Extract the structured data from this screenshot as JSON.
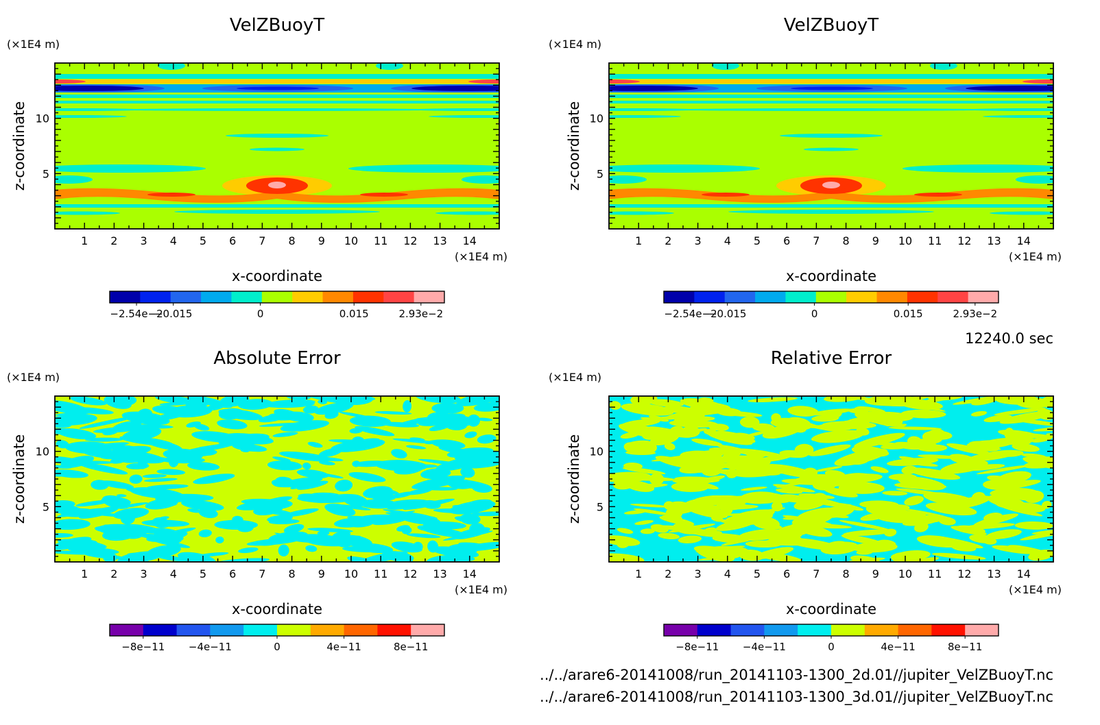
{
  "chart_data": [
    {
      "type": "heatmap",
      "title": "VelZBuoyT",
      "xlabel": "x-coordinate",
      "ylabel": "z-coordinate",
      "x_unit": "(×1E4 m)",
      "y_unit": "(×1E4 m)",
      "xlim": [
        0,
        15
      ],
      "ylim": [
        0,
        15
      ],
      "x_ticks": [
        "1",
        "2",
        "3",
        "4",
        "5",
        "6",
        "7",
        "8",
        "9",
        "10",
        "11",
        "12",
        "13",
        "14"
      ],
      "y_ticks": [
        "5",
        "10"
      ],
      "colorbar": {
        "range": [
          -0.0254,
          0.0293
        ],
        "labels": [
          "−2.54e−2",
          "−0.015",
          "0",
          "0.015",
          "2.93e−2"
        ],
        "colors": [
          "#0000aa",
          "#0022ee",
          "#2266ee",
          "#00aaee",
          "#00eecc",
          "#aaff00",
          "#ffcc00",
          "#ff8800",
          "#ff3300",
          "#ff4444",
          "#ffaaaa"
        ]
      }
    },
    {
      "type": "heatmap",
      "title": "VelZBuoyT",
      "xlabel": "x-coordinate",
      "ylabel": "z-coordinate",
      "x_unit": "(×1E4 m)",
      "y_unit": "(×1E4 m)",
      "xlim": [
        0,
        15
      ],
      "ylim": [
        0,
        15
      ],
      "x_ticks": [
        "1",
        "2",
        "3",
        "4",
        "5",
        "6",
        "7",
        "8",
        "9",
        "10",
        "11",
        "12",
        "13",
        "14"
      ],
      "y_ticks": [
        "5",
        "10"
      ],
      "colorbar": {
        "range": [
          -0.0254,
          0.0293
        ],
        "labels": [
          "−2.54e−2",
          "−0.015",
          "0",
          "0.015",
          "2.93e−2"
        ],
        "colors": [
          "#0000aa",
          "#0022ee",
          "#2266ee",
          "#00aaee",
          "#00eecc",
          "#aaff00",
          "#ffcc00",
          "#ff8800",
          "#ff3300",
          "#ff4444",
          "#ffaaaa"
        ]
      }
    },
    {
      "type": "heatmap",
      "title": "Absolute Error",
      "xlabel": "x-coordinate",
      "ylabel": "z-coordinate",
      "x_unit": "(×1E4 m)",
      "y_unit": "(×1E4 m)",
      "xlim": [
        0,
        15
      ],
      "ylim": [
        0,
        15
      ],
      "x_ticks": [
        "1",
        "2",
        "3",
        "4",
        "5",
        "6",
        "7",
        "8",
        "9",
        "10",
        "11",
        "12",
        "13",
        "14"
      ],
      "y_ticks": [
        "5",
        "10"
      ],
      "colorbar": {
        "range": [
          -1e-10,
          1e-10
        ],
        "labels": [
          "−8e−11",
          "−4e−11",
          "0",
          "4e−11",
          "8e−11"
        ],
        "colors": [
          "#7700aa",
          "#0000cc",
          "#2255ee",
          "#1199ee",
          "#00eeee",
          "#ccff00",
          "#ffaa00",
          "#ff6600",
          "#ff1100",
          "#ffaaaa"
        ]
      }
    },
    {
      "type": "heatmap",
      "title": "Relative Error",
      "xlabel": "x-coordinate",
      "ylabel": "z-coordinate",
      "x_unit": "(×1E4 m)",
      "y_unit": "(×1E4 m)",
      "xlim": [
        0,
        15
      ],
      "ylim": [
        0,
        15
      ],
      "x_ticks": [
        "1",
        "2",
        "3",
        "4",
        "5",
        "6",
        "7",
        "8",
        "9",
        "10",
        "11",
        "12",
        "13",
        "14"
      ],
      "y_ticks": [
        "5",
        "10"
      ],
      "colorbar": {
        "range": [
          -1e-10,
          1e-10
        ],
        "labels": [
          "−8e−11",
          "−4e−11",
          "0",
          "4e−11",
          "8e−11"
        ],
        "colors": [
          "#7700aa",
          "#0000cc",
          "#2255ee",
          "#1199ee",
          "#00eeee",
          "#ccff00",
          "#ffaa00",
          "#ff6600",
          "#ff1100",
          "#ffaaaa"
        ]
      }
    }
  ],
  "time_label": "12240.0 sec",
  "files": [
    "../../arare6-20141008/run_20141103-1300_2d.01//jupiter_VelZBuoyT.nc",
    "../../arare6-20141008/run_20141103-1300_3d.01//jupiter_VelZBuoyT.nc"
  ]
}
